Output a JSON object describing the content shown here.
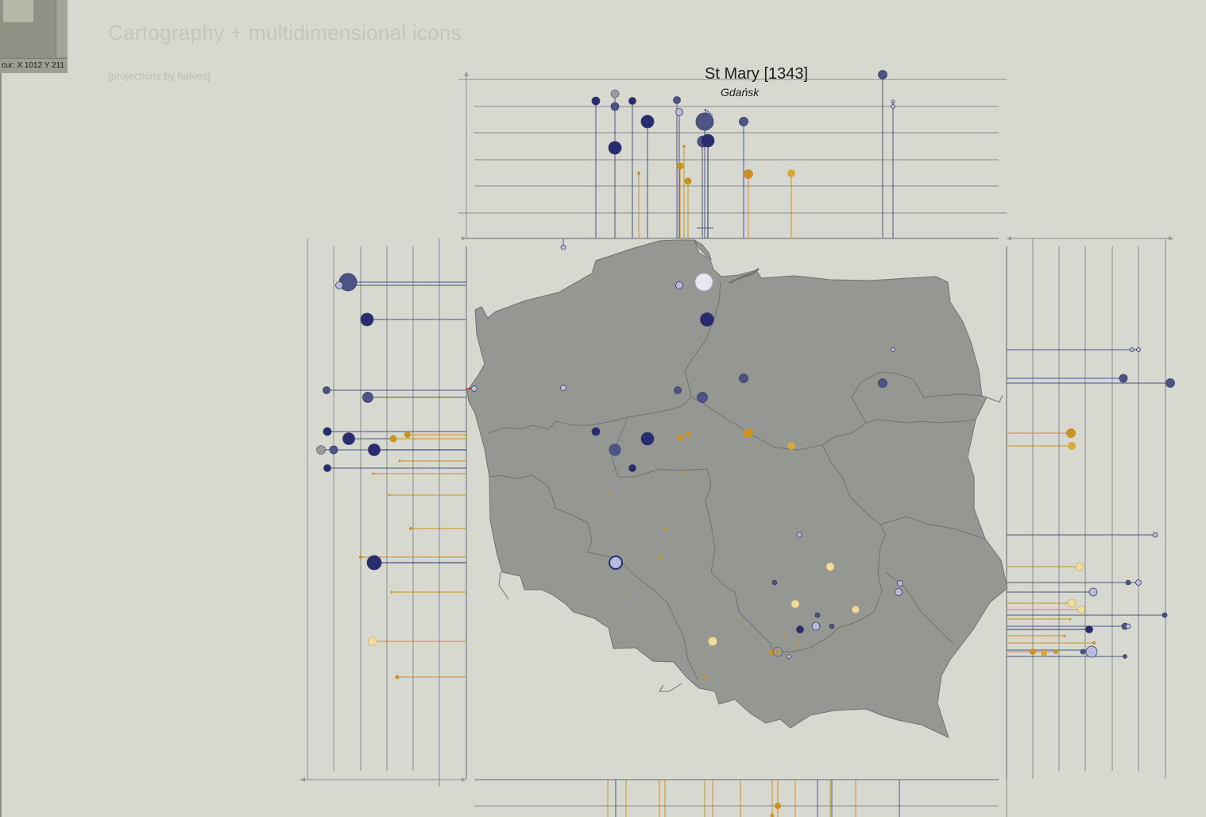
{
  "page": {
    "title": "Cartography + multidimensional icons",
    "subtitle": "[projections by halves]"
  },
  "cursor_readout": "cur: X 1012 Y 211",
  "selected_site": {
    "name": "St Mary [1343]",
    "city": "Gdańsk"
  },
  "colors": {
    "background": "#d7d8cf",
    "land": "#959892",
    "border": "#6f7272",
    "navy": "#262c6e",
    "slate": "#4d5383",
    "lavender": "#b9bbdc",
    "gold": "#c89226",
    "light_gold": "#f0dc9e",
    "grid": "#8a8c90"
  }
}
